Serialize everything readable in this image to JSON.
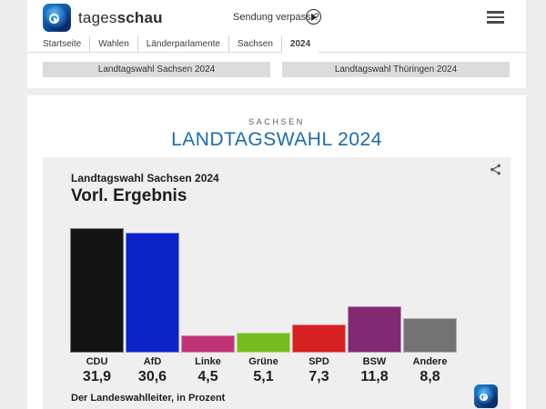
{
  "header": {
    "brand": {
      "regular": "tages",
      "bold": "schau"
    },
    "sendung_verpasst_label": "Sendung verpasst?",
    "breadcrumb": [
      "Startseite",
      "Wahlen",
      "Länderparlamente",
      "Sachsen",
      "2024"
    ],
    "breadcrumb_active": "2024"
  },
  "region_tabs": [
    "Landtagswahl Sachsen 2024",
    "Landtagswahl Thüringen 2024"
  ],
  "main": {
    "kicker": "SACHSEN",
    "title": "LANDTAGSWAHL 2024"
  },
  "chart_data": {
    "type": "bar",
    "title": "Landtagswahl Sachsen 2024",
    "subtitle": "Vorl. Ergebnis",
    "categories": [
      "CDU",
      "AfD",
      "Linke",
      "Grüne",
      "SPD",
      "BSW",
      "Andere"
    ],
    "values": [
      31.9,
      30.6,
      4.5,
      5.1,
      7.3,
      11.8,
      8.8
    ],
    "value_labels": [
      "31,9",
      "30,6",
      "4,5",
      "5,1",
      "7,3",
      "11,8",
      "8,8"
    ],
    "bar_colors": [
      "#141414",
      "#0c24c8",
      "#c03277",
      "#77bc1f",
      "#d62021",
      "#812a72",
      "#737373"
    ],
    "source": "Der Landeswahlleiter, in Prozent",
    "xlabel": "",
    "ylabel": "Prozent",
    "ylim": [
      0,
      33
    ],
    "grid": false,
    "legend": false
  },
  "colors": {
    "title_blue": "#1a6cab",
    "panel_bg": "#efefef",
    "tab_bg": "#dcdcdc"
  },
  "icons": {
    "share": "share-icon",
    "play": "play-icon",
    "menu": "hamburger-menu-icon",
    "logo": "tagesschau-globe-logo"
  }
}
